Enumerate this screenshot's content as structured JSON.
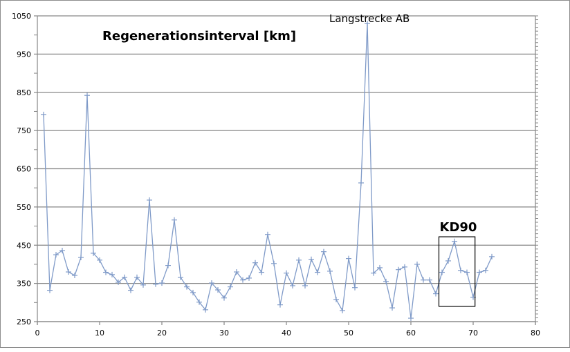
{
  "chart_data": {
    "type": "line",
    "title": "Regenerationsinterval [km]",
    "xlabel": "",
    "ylabel": "",
    "xlim": [
      0,
      80
    ],
    "ylim": [
      250,
      1050
    ],
    "x_ticks": [
      0,
      10,
      20,
      30,
      40,
      50,
      60,
      70,
      80
    ],
    "y_ticks": [
      250,
      350,
      450,
      550,
      650,
      750,
      850,
      950,
      1050
    ],
    "grid": true,
    "legend": null,
    "series": [
      {
        "name": "Regenerationsinterval",
        "color": "#7f9ac8",
        "marker": "plus",
        "x": [
          1,
          2,
          3,
          4,
          5,
          6,
          7,
          8,
          9,
          10,
          11,
          12,
          13,
          14,
          15,
          16,
          17,
          18,
          19,
          20,
          21,
          22,
          23,
          24,
          25,
          26,
          27,
          28,
          29,
          30,
          31,
          32,
          33,
          34,
          35,
          36,
          37,
          38,
          39,
          40,
          41,
          42,
          43,
          44,
          45,
          46,
          47,
          48,
          49,
          50,
          51,
          52,
          53,
          54,
          55,
          56,
          57,
          58,
          59,
          60,
          61,
          62,
          63,
          64,
          65,
          66,
          67,
          68,
          69,
          70,
          71,
          72,
          73
        ],
        "values": [
          792,
          332,
          425,
          436,
          380,
          371,
          418,
          842,
          429,
          411,
          379,
          373,
          353,
          366,
          332,
          366,
          346,
          568,
          348,
          351,
          397,
          516,
          366,
          341,
          326,
          301,
          281,
          351,
          333,
          312,
          341,
          380,
          359,
          364,
          404,
          379,
          478,
          402,
          294,
          377,
          344,
          411,
          344,
          413,
          379,
          433,
          382,
          308,
          279,
          415,
          339,
          613,
          1030,
          377,
          391,
          355,
          286,
          386,
          393,
          259,
          400,
          359,
          359,
          323,
          379,
          409,
          460,
          384,
          379,
          314,
          379,
          384,
          420
        ]
      }
    ],
    "annotations": [
      {
        "text": "Langstrecke AB",
        "x": 53,
        "y": 1030
      },
      {
        "text": "KD90",
        "box": {
          "x0": 64.5,
          "x1": 70.3,
          "y0": 290,
          "y1": 472
        }
      }
    ]
  },
  "labels": {
    "title": "Regenerationsinterval [km]",
    "annotation_peak": "Langstrecke AB",
    "annotation_box": "KD90"
  }
}
